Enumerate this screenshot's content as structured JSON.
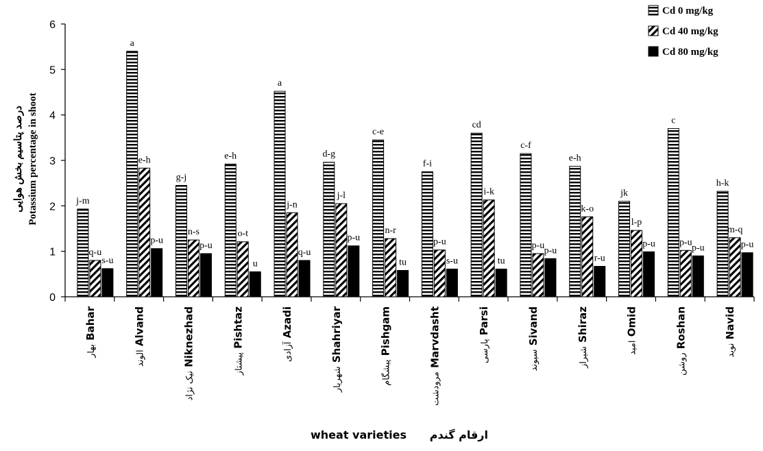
{
  "chart_data": {
    "type": "bar",
    "ylabel_fa": "درصد پتاسیم بخش هوایی",
    "ylabel": "Potassium percentage in shoot",
    "xlabel": "wheat varieties",
    "xlabel_fa": "ارقام گندم",
    "ylim": [
      0,
      6
    ],
    "yticks": [
      "0",
      "1",
      "2",
      "3",
      "4",
      "5",
      "6"
    ],
    "grid": false,
    "legend_position": "top-right",
    "categories": [
      "Bahar",
      "Alvand",
      "Niknezhad",
      "Pishtaz",
      "Azadi",
      "Shahriyar",
      "Pishgam",
      "Marvdasht",
      "Parsi",
      "Sivand",
      "Shiraz",
      "Omid",
      "Roshan",
      "Navid"
    ],
    "categories_fa": [
      "بهار",
      "الوند",
      "نیک نژاد",
      "پیشتاز",
      "آزادی",
      "شهریار",
      "پیشگام",
      "مرودشت",
      "پارسی",
      "سیوند",
      "شیراز",
      "امید",
      "روشن",
      "نوید"
    ],
    "series": [
      {
        "name": "Cd 0 mg/kg",
        "pattern": "horizontal-stripes",
        "values": [
          1.93,
          5.4,
          2.45,
          2.92,
          4.52,
          2.96,
          3.45,
          2.75,
          3.6,
          3.15,
          2.87,
          2.1,
          3.7,
          2.32
        ],
        "labels": [
          "j-m",
          "a",
          "g-j",
          "e-h",
          "a",
          "d-g",
          "c-e",
          "f-i",
          "cd",
          "c-f",
          "e-h",
          "jk",
          "c",
          "h-k"
        ]
      },
      {
        "name": "Cd 40 mg/kg",
        "pattern": "diagonal-hatch",
        "values": [
          0.8,
          2.83,
          1.25,
          1.21,
          1.85,
          2.05,
          1.28,
          1.03,
          2.13,
          0.95,
          1.76,
          1.46,
          1.02,
          1.3
        ],
        "labels": [
          "q-u",
          "e-h",
          "n-s",
          "o-t",
          "j-n",
          "j-l",
          "n-r",
          "p-u",
          "i-k",
          "p-u",
          "k-o",
          "l-p",
          "p-u",
          "m-q"
        ]
      },
      {
        "name": "Cd 80 mg/kg",
        "pattern": "solid-black",
        "values": [
          0.62,
          1.06,
          0.95,
          0.55,
          0.8,
          1.12,
          0.58,
          0.61,
          0.61,
          0.84,
          0.67,
          0.99,
          0.9,
          0.97
        ],
        "labels": [
          "s-u",
          "p-u",
          "p-u",
          "u",
          "q-u",
          "p-u",
          "tu",
          "s-u",
          "tu",
          "p-u",
          "r-u",
          "p-u",
          "p-u",
          "p-u"
        ]
      }
    ]
  }
}
